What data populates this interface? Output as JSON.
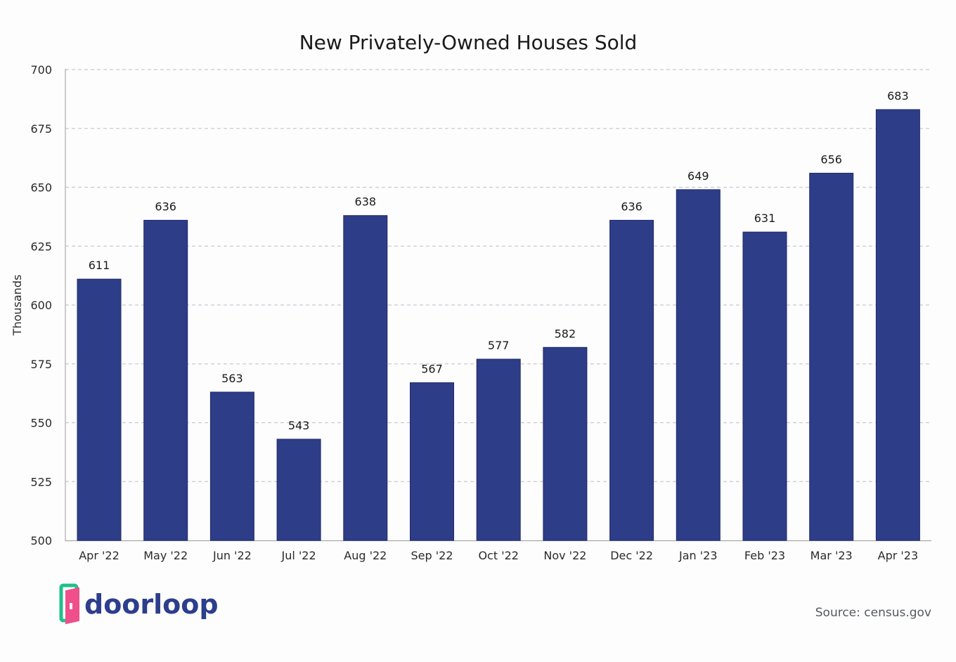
{
  "brand": {
    "name": "doorloop",
    "color": "#2c3e8c",
    "accent_pink": "#ef4f8a",
    "accent_green": "#21c08b"
  },
  "source": "Source: census.gov",
  "chart_data": {
    "type": "bar",
    "title": "New Privately-Owned Houses Sold",
    "xlabel": "",
    "ylabel": "Thousands",
    "categories": [
      "Apr '22",
      "May '22",
      "Jun '22",
      "Jul '22",
      "Aug '22",
      "Sep '22",
      "Oct '22",
      "Nov '22",
      "Dec '22",
      "Jan '23",
      "Feb '23",
      "Mar '23",
      "Apr '23"
    ],
    "values": [
      611,
      636,
      563,
      543,
      638,
      567,
      577,
      582,
      636,
      649,
      631,
      656,
      683
    ],
    "ylim": [
      500,
      700
    ],
    "yticks": [
      500,
      525,
      550,
      575,
      600,
      625,
      650,
      675,
      700
    ],
    "grid": true,
    "bar_color": "#2e3d87"
  }
}
